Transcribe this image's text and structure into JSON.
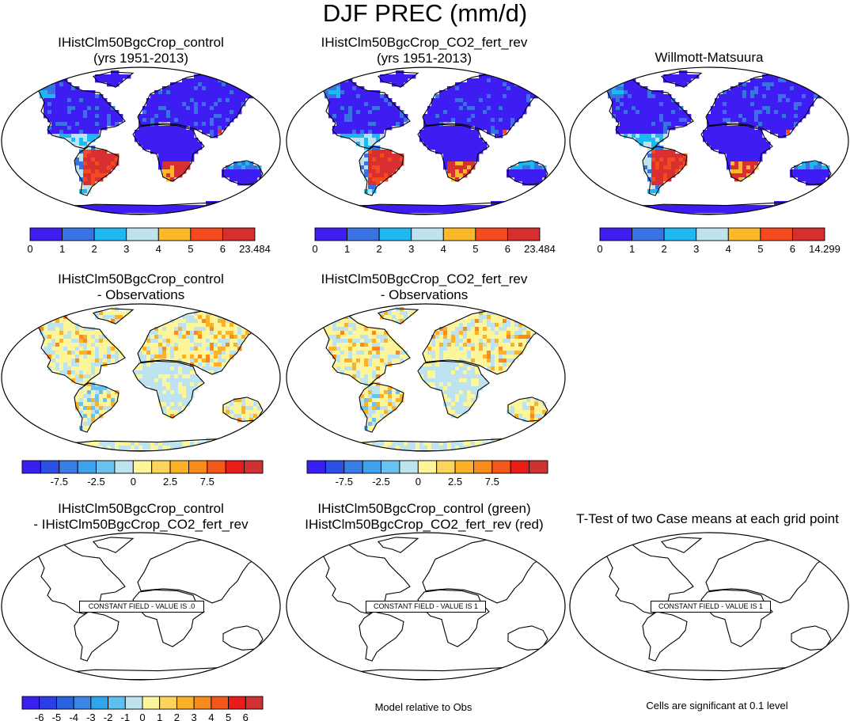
{
  "title": "DJF PREC (mm/d)",
  "panels": [
    {
      "id": "p1",
      "title_lines": [
        "IHistClm50BgcCrop_control",
        "(yrs 1951-2013)"
      ],
      "kind": "abs"
    },
    {
      "id": "p2",
      "title_lines": [
        "IHistClm50BgcCrop_CO2_fert_rev",
        "(yrs 1951-2013)"
      ],
      "kind": "abs"
    },
    {
      "id": "p3",
      "title_lines": [
        "Willmott-Matsuura"
      ],
      "kind": "abs"
    },
    {
      "id": "p4",
      "title_lines": [
        "IHistClm50BgcCrop_control",
        "- Observations"
      ],
      "kind": "diff"
    },
    {
      "id": "p5",
      "title_lines": [
        "IHistClm50BgcCrop_CO2_fert_rev",
        "- Observations"
      ],
      "kind": "diff"
    },
    {
      "id": "p6",
      "title_lines": [
        "IHistClm50BgcCrop_control",
        "- IHistClm50BgcCrop_CO2_fert_rev"
      ],
      "kind": "blank",
      "label": "CONSTANT FIELD - VALUE IS .0"
    },
    {
      "id": "p7",
      "title_lines": [
        "IHistClm50BgcCrop_control (green)",
        "IHistClm50BgcCrop_CO2_fert_rev (red)"
      ],
      "kind": "blank",
      "label": "CONSTANT FIELD - VALUE IS 1"
    },
    {
      "id": "p8",
      "title_lines": [
        "T-Test of two Case means at each grid point"
      ],
      "kind": "blank",
      "label": "CONSTANT FIELD - VALUE IS 1"
    }
  ],
  "colorbars": {
    "abs1": {
      "colors": [
        "#3d1df2",
        "#3a72e3",
        "#1db8f0",
        "#bfe2f0",
        "#fbb829",
        "#f54a1d",
        "#d83030"
      ],
      "labels": [
        "0",
        "1",
        "2",
        "3",
        "4",
        "5",
        "6",
        "23.484"
      ]
    },
    "abs2": {
      "colors": [
        "#3d1df2",
        "#3a72e3",
        "#1db8f0",
        "#bfe2f0",
        "#fbb829",
        "#f54a1d",
        "#d83030"
      ],
      "labels": [
        "0",
        "1",
        "2",
        "3",
        "4",
        "5",
        "6",
        "23.484"
      ]
    },
    "abs3": {
      "colors": [
        "#3d1df2",
        "#3a72e3",
        "#1db8f0",
        "#bfe2f0",
        "#fbb829",
        "#f54a1d",
        "#d83030"
      ],
      "labels": [
        "0",
        "1",
        "2",
        "3",
        "4",
        "5",
        "6",
        "14.299"
      ]
    },
    "diff": {
      "colors": [
        "#3a20f0",
        "#2c4fe6",
        "#3a7de6",
        "#3fa0ec",
        "#6cc2ee",
        "#bde2f0",
        "#fdf59a",
        "#fcd45a",
        "#fbb228",
        "#f98a1c",
        "#f5561a",
        "#e81d19",
        "#cf3232"
      ],
      "labels": [
        "-7.5",
        "-2.5",
        "0",
        "2.5",
        "7.5"
      ],
      "label_slots": [
        2,
        4,
        6,
        8,
        10
      ]
    },
    "rel": {
      "colors": [
        "#3a20f0",
        "#2c3ee6",
        "#2b62e0",
        "#3a86e6",
        "#2ea4ec",
        "#5cc0ee",
        "#bde2f0",
        "#fdf59a",
        "#fcd45a",
        "#fbb228",
        "#f98a1c",
        "#f5561a",
        "#e81d19",
        "#cf3232"
      ],
      "labels": [
        "-6",
        "-5",
        "-4",
        "-3",
        "-2",
        "-1",
        "0",
        "1",
        "2",
        "3",
        "4",
        "5",
        "6"
      ]
    }
  },
  "footnotes": {
    "model_relative": "Model relative to Obs",
    "significance": "Cells are significant at 0.1 level"
  },
  "colors": {
    "land_outline": "#000000",
    "antarctica_abs": "#3d1df2",
    "antarctica_diff": "#bfe2f0"
  }
}
